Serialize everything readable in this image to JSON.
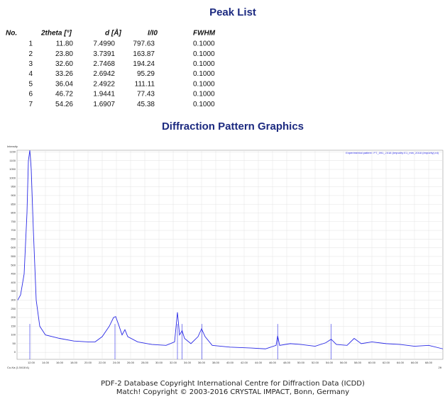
{
  "peak_list": {
    "title": "Peak List",
    "columns": [
      "No.",
      "2theta [°]",
      "d [Å]",
      "I/I0",
      "FWHM"
    ],
    "rows": [
      [
        "1",
        "11.80",
        "7.4990",
        "797.63",
        "0.1000"
      ],
      [
        "2",
        "23.80",
        "3.7391",
        "163.87",
        "0.1000"
      ],
      [
        "3",
        "32.60",
        "2.7468",
        "194.24",
        "0.1000"
      ],
      [
        "4",
        "33.26",
        "2.6942",
        "95.29",
        "0.1000"
      ],
      [
        "5",
        "36.04",
        "2.4922",
        "111.11",
        "0.1000"
      ],
      [
        "6",
        "46.72",
        "1.9441",
        "77.43",
        "0.1000"
      ],
      [
        "7",
        "54.26",
        "1.6907",
        "45.38",
        "0.1000"
      ]
    ]
  },
  "chart_data": {
    "type": "line",
    "title": "Diffraction Pattern Graphics",
    "y_label": "Intensity",
    "x_label_left": "Cu-Ka (1.5418 A)",
    "x_label": "2θ",
    "x": [
      10.1,
      10.5,
      11.0,
      11.4,
      11.6,
      11.8,
      12.0,
      12.3,
      12.7,
      13.2,
      14,
      16,
      18,
      20,
      21,
      22,
      23,
      23.6,
      23.9,
      24.3,
      24.8,
      25.2,
      25.6,
      27,
      29,
      31,
      32.2,
      32.6,
      32.9,
      33.26,
      33.6,
      34.5,
      35.5,
      36.0,
      36.5,
      37.5,
      40,
      43,
      45,
      46.5,
      46.72,
      47,
      48.5,
      50,
      52,
      53.5,
      54.26,
      55,
      56.5,
      57.5,
      58.5,
      60,
      62,
      64,
      66,
      68,
      70
    ],
    "series": [
      {
        "name": "Experimental pattern: PT_091_2018 (Impurity E1_min_2018 (Impurity).rd)",
        "color": "#2a2ae6",
        "values": [
          300,
          330,
          450,
          800,
          1100,
          1160,
          1050,
          700,
          300,
          150,
          100,
          80,
          65,
          60,
          60,
          90,
          150,
          200,
          205,
          160,
          100,
          130,
          90,
          60,
          45,
          40,
          60,
          230,
          100,
          125,
          80,
          50,
          90,
          135,
          90,
          40,
          30,
          25,
          20,
          40,
          95,
          40,
          50,
          45,
          35,
          55,
          75,
          45,
          40,
          80,
          50,
          60,
          50,
          45,
          35,
          40,
          20
        ]
      }
    ],
    "xlim": [
      10,
      70
    ],
    "xticks": [
      {
        "value": 12,
        "label": "12.00"
      },
      {
        "value": 14,
        "label": "14.00"
      },
      {
        "value": 16,
        "label": "16.00"
      },
      {
        "value": 18,
        "label": "18.00"
      },
      {
        "value": 20,
        "label": "20.00"
      },
      {
        "value": 22,
        "label": "22.00"
      },
      {
        "value": 24,
        "label": "24.00"
      },
      {
        "value": 26,
        "label": "26.00"
      },
      {
        "value": 28,
        "label": "28.00"
      },
      {
        "value": 30,
        "label": "30.00"
      },
      {
        "value": 32,
        "label": "32.00"
      },
      {
        "value": 34,
        "label": "34.00"
      },
      {
        "value": 36,
        "label": "36.00"
      },
      {
        "value": 38,
        "label": "38.00"
      },
      {
        "value": 40,
        "label": "40.00"
      },
      {
        "value": 42,
        "label": "42.00"
      },
      {
        "value": 44,
        "label": "44.00"
      },
      {
        "value": 46,
        "label": "46.00"
      },
      {
        "value": 48,
        "label": "48.00"
      },
      {
        "value": 50,
        "label": "50.00"
      },
      {
        "value": 52,
        "label": "52.00"
      },
      {
        "value": 54,
        "label": "54.00"
      },
      {
        "value": 56,
        "label": "56.00"
      },
      {
        "value": 58,
        "label": "58.00"
      },
      {
        "value": 60,
        "label": "60.00"
      },
      {
        "value": 62,
        "label": "62.00"
      },
      {
        "value": 64,
        "label": "64.00"
      },
      {
        "value": 66,
        "label": "66.00"
      },
      {
        "value": 68,
        "label": "68.00"
      }
    ],
    "ylim": [
      -40,
      1160
    ],
    "yticks": [
      0,
      50,
      100,
      150,
      200,
      250,
      300,
      350,
      400,
      450,
      500,
      550,
      600,
      650,
      700,
      750,
      800,
      850,
      900,
      950,
      1000,
      1050,
      1100,
      1150
    ],
    "grid": true
  },
  "footer": [
    "PDF-2 Database Copyright International Centre for Diffraction Data (ICDD)",
    "Match! Copyright © 2003-2016 CRYSTAL IMPACT, Bonn, Germany"
  ]
}
